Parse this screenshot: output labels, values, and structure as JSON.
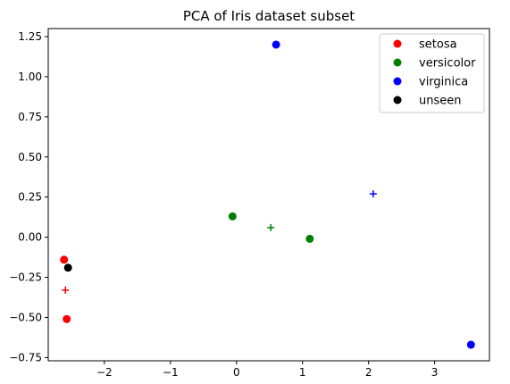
{
  "chart_data": {
    "type": "scatter",
    "title": "PCA of Iris dataset subset",
    "xlabel": "",
    "ylabel": "",
    "xlim": [
      -2.85,
      3.83
    ],
    "ylim": [
      -0.77,
      1.3
    ],
    "xticks": [
      -2,
      -1,
      0,
      1,
      2,
      3
    ],
    "xtick_labels": [
      "−2",
      "−1",
      "0",
      "1",
      "2",
      "3"
    ],
    "yticks": [
      -0.75,
      -0.5,
      -0.25,
      0.0,
      0.25,
      0.5,
      0.75,
      1.0,
      1.25
    ],
    "ytick_labels": [
      "−0.75",
      "−0.50",
      "−0.25",
      "0.00",
      "0.25",
      "0.50",
      "0.75",
      "1.00",
      "1.25"
    ],
    "grid": false,
    "legend_position": "top-right",
    "series": [
      {
        "name": "setosa",
        "color": "#ff0000",
        "marker": "circle",
        "points": [
          [
            -2.61,
            -0.14
          ],
          [
            -2.57,
            -0.51
          ]
        ]
      },
      {
        "name": "versicolor",
        "color": "#008000",
        "marker": "circle",
        "points": [
          [
            -0.06,
            0.13
          ],
          [
            1.11,
            -0.01
          ]
        ]
      },
      {
        "name": "virginica",
        "color": "#0000ff",
        "marker": "circle",
        "points": [
          [
            0.6,
            1.2
          ],
          [
            3.55,
            -0.67
          ]
        ]
      },
      {
        "name": "unseen",
        "color": "#000000",
        "marker": "circle",
        "points": [
          [
            -2.55,
            -0.19
          ]
        ]
      }
    ],
    "centroids": [
      {
        "color": "#ff0000",
        "marker": "plus",
        "point": [
          -2.59,
          -0.33
        ]
      },
      {
        "color": "#008000",
        "marker": "plus",
        "point": [
          0.52,
          0.06
        ]
      },
      {
        "color": "#0000ff",
        "marker": "plus",
        "point": [
          2.07,
          0.27
        ]
      }
    ]
  }
}
